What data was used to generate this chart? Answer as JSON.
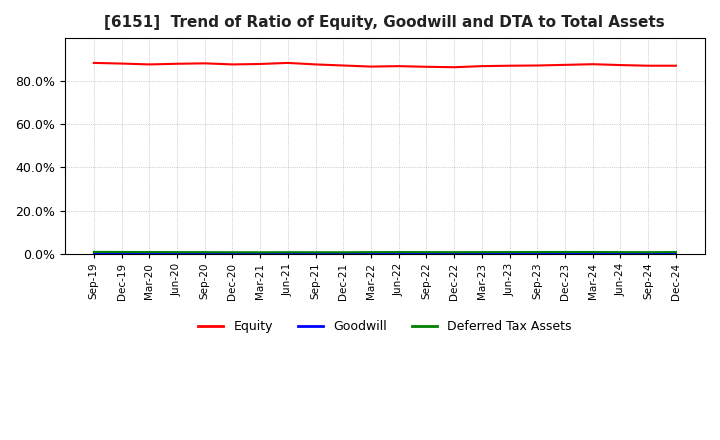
{
  "title": "[6151]  Trend of Ratio of Equity, Goodwill and DTA to Total Assets",
  "title_fontsize": 11,
  "x_labels": [
    "Sep-19",
    "Dec-19",
    "Mar-20",
    "Jun-20",
    "Sep-20",
    "Dec-20",
    "Mar-21",
    "Jun-21",
    "Sep-21",
    "Dec-21",
    "Mar-22",
    "Jun-22",
    "Sep-22",
    "Dec-22",
    "Mar-23",
    "Jun-23",
    "Sep-23",
    "Dec-23",
    "Mar-24",
    "Jun-24",
    "Sep-24",
    "Dec-24"
  ],
  "equity": [
    88.5,
    88.2,
    87.8,
    88.1,
    88.3,
    87.8,
    88.0,
    88.5,
    87.8,
    87.3,
    86.8,
    87.0,
    86.7,
    86.5,
    87.0,
    87.2,
    87.3,
    87.6,
    87.9,
    87.5,
    87.2,
    87.2
  ],
  "goodwill": [
    0.0,
    0.0,
    0.0,
    0.0,
    0.0,
    0.0,
    0.0,
    0.0,
    0.0,
    0.0,
    0.0,
    0.0,
    0.0,
    0.0,
    0.0,
    0.0,
    0.0,
    0.0,
    0.0,
    0.0,
    0.0,
    0.0
  ],
  "dta": [
    0.85,
    0.82,
    0.78,
    0.75,
    0.73,
    0.7,
    0.68,
    0.72,
    0.7,
    0.68,
    0.75,
    0.78,
    0.75,
    0.72,
    0.75,
    0.78,
    0.8,
    0.82,
    0.8,
    0.75,
    0.72,
    0.78
  ],
  "equity_color": "#FF0000",
  "goodwill_color": "#0000FF",
  "dta_color": "#008000",
  "background_color": "#FFFFFF",
  "grid_color": "#AAAAAA",
  "ylim": [
    0,
    100
  ],
  "yticks": [
    0,
    20,
    40,
    60,
    80
  ],
  "legend_labels": [
    "Equity",
    "Goodwill",
    "Deferred Tax Assets"
  ]
}
